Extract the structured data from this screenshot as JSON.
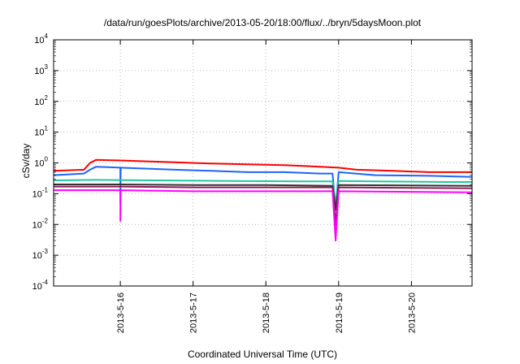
{
  "chart_data": {
    "type": "line",
    "title": "/data/run/goesPlots/archive/2013-05-20/18:00/flux/../bryn/5daysMoon.plot",
    "xlabel": "Coordinated Universal Time (UTC)",
    "ylabel": "cSv/day",
    "y_scale": "log",
    "ylim": [
      0.0001,
      10000
    ],
    "xlim": [
      "2013-05-15T02:00",
      "2013-05-20T20:00"
    ],
    "grid": true,
    "legend": "none",
    "y_ticks": [
      {
        "base": "10",
        "exp": "-4"
      },
      {
        "base": "10",
        "exp": "-3"
      },
      {
        "base": "10",
        "exp": "-2"
      },
      {
        "base": "10",
        "exp": "-1"
      },
      {
        "base": "10",
        "exp": "0"
      },
      {
        "base": "10",
        "exp": "1"
      },
      {
        "base": "10",
        "exp": "2"
      },
      {
        "base": "10",
        "exp": "3"
      },
      {
        "base": "10",
        "exp": "4"
      }
    ],
    "x_ticks": [
      {
        "t": "2013-05-16T00:00",
        "label": "2013-5-16"
      },
      {
        "t": "2013-05-17T00:00",
        "label": "2013-5-17"
      },
      {
        "t": "2013-05-18T00:00",
        "label": "2013-5-18"
      },
      {
        "t": "2013-05-19T00:00",
        "label": "2013-5-19"
      },
      {
        "t": "2013-05-20T00:00",
        "label": "2013-5-20"
      }
    ],
    "series": [
      {
        "color": "#ff0000",
        "points": [
          [
            "2013-05-15T02:00",
            0.55
          ],
          [
            "2013-05-15T12:00",
            0.6
          ],
          [
            "2013-05-15T14:00",
            1.0
          ],
          [
            "2013-05-15T16:00",
            1.25
          ],
          [
            "2013-05-16T00:00",
            1.2
          ],
          [
            "2013-05-16T06:00",
            1.15
          ],
          [
            "2013-05-16T18:00",
            1.05
          ],
          [
            "2013-05-17T06:00",
            0.95
          ],
          [
            "2013-05-17T18:00",
            0.9
          ],
          [
            "2013-05-18T06:00",
            0.85
          ],
          [
            "2013-05-18T18:00",
            0.75
          ],
          [
            "2013-05-19T00:00",
            0.7
          ],
          [
            "2013-05-19T06:00",
            0.6
          ],
          [
            "2013-05-19T18:00",
            0.55
          ],
          [
            "2013-05-20T06:00",
            0.5
          ],
          [
            "2013-05-20T20:00",
            0.5
          ]
        ]
      },
      {
        "color": "#1e64ff",
        "points": [
          [
            "2013-05-15T02:00",
            0.4
          ],
          [
            "2013-05-15T12:00",
            0.45
          ],
          [
            "2013-05-15T14:00",
            0.6
          ],
          [
            "2013-05-15T16:00",
            0.75
          ],
          [
            "2013-05-16T00:00",
            0.7
          ],
          [
            "2013-05-16T00:02",
            0.05
          ],
          [
            "2013-05-16T00:06",
            0.7
          ],
          [
            "2013-05-16T18:00",
            0.6
          ],
          [
            "2013-05-17T06:00",
            0.55
          ],
          [
            "2013-05-17T18:00",
            0.5
          ],
          [
            "2013-05-18T06:00",
            0.5
          ],
          [
            "2013-05-18T18:00",
            0.45
          ],
          [
            "2013-05-18T22:00",
            0.45
          ],
          [
            "2013-05-18T23:00",
            0.03
          ],
          [
            "2013-05-19T00:00",
            0.5
          ],
          [
            "2013-05-19T12:00",
            0.4
          ],
          [
            "2013-05-20T06:00",
            0.38
          ],
          [
            "2013-05-20T20:00",
            0.35
          ]
        ]
      },
      {
        "color": "#20c8a0",
        "points": [
          [
            "2013-05-15T02:00",
            0.27
          ],
          [
            "2013-05-15T16:00",
            0.28
          ],
          [
            "2013-05-16T12:00",
            0.27
          ],
          [
            "2013-05-17T12:00",
            0.26
          ],
          [
            "2013-05-18T12:00",
            0.25
          ],
          [
            "2013-05-18T22:00",
            0.25
          ],
          [
            "2013-05-18T23:00",
            0.05
          ],
          [
            "2013-05-19T00:00",
            0.26
          ],
          [
            "2013-05-19T12:00",
            0.25
          ],
          [
            "2013-05-20T12:00",
            0.24
          ],
          [
            "2013-05-20T20:00",
            0.24
          ]
        ]
      },
      {
        "color": "#333333",
        "points": [
          [
            "2013-05-15T02:00",
            0.2
          ],
          [
            "2013-05-16T00:00",
            0.2
          ],
          [
            "2013-05-17T00:00",
            0.19
          ],
          [
            "2013-05-18T00:00",
            0.19
          ],
          [
            "2013-05-18T22:00",
            0.18
          ],
          [
            "2013-05-18T23:00",
            0.03
          ],
          [
            "2013-05-19T00:00",
            0.19
          ],
          [
            "2013-05-20T20:00",
            0.18
          ]
        ]
      },
      {
        "color": "#8c1a5a",
        "points": [
          [
            "2013-05-15T02:00",
            0.17
          ],
          [
            "2013-05-16T00:00",
            0.17
          ],
          [
            "2013-05-17T00:00",
            0.16
          ],
          [
            "2013-05-18T00:00",
            0.16
          ],
          [
            "2013-05-18T22:00",
            0.16
          ],
          [
            "2013-05-18T23:00",
            0.01
          ],
          [
            "2013-05-19T00:00",
            0.16
          ],
          [
            "2013-05-20T20:00",
            0.15
          ]
        ]
      },
      {
        "color": "#ff00ff",
        "points": [
          [
            "2013-05-15T02:00",
            0.13
          ],
          [
            "2013-05-16T00:00",
            0.13
          ],
          [
            "2013-05-16T00:02",
            0.013
          ],
          [
            "2013-05-16T00:06",
            0.13
          ],
          [
            "2013-05-17T00:00",
            0.12
          ],
          [
            "2013-05-18T00:00",
            0.12
          ],
          [
            "2013-05-18T22:00",
            0.12
          ],
          [
            "2013-05-18T23:00",
            0.003
          ],
          [
            "2013-05-19T00:00",
            0.12
          ],
          [
            "2013-05-20T20:00",
            0.11
          ]
        ]
      }
    ]
  }
}
